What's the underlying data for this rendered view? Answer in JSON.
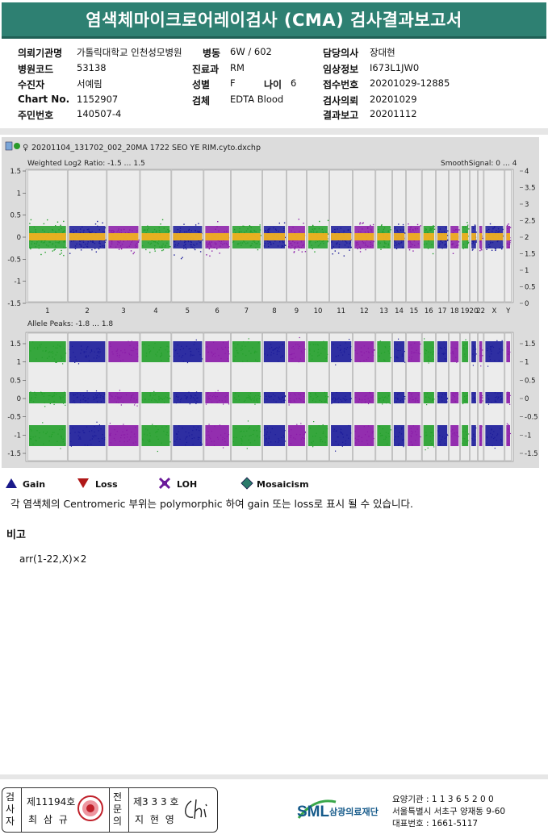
{
  "title": "염색체마이크로어레이검사 (CMA) 검사결과보고서",
  "info": [
    {
      "key": "의뢰기관명",
      "value": "가톨릭대학교 인천성모병원"
    },
    {
      "key": "병동",
      "value": "6W / 602"
    },
    {
      "key": "담당의사",
      "value": "장대현"
    },
    {
      "key": "병원코드",
      "value": "53138"
    },
    {
      "key": "진료과",
      "value": "RM"
    },
    {
      "key": "임상정보",
      "value": "I673L1JW0"
    },
    {
      "key": "수진자",
      "value": "서예림"
    },
    {
      "key": "성별",
      "value": "F"
    },
    {
      "key": "나이",
      "value": "6"
    },
    {
      "key": "접수번호",
      "value": "20201029-12885"
    },
    {
      "key": "Chart No.",
      "value": "1152907"
    },
    {
      "key": "검체",
      "value": "EDTA Blood"
    },
    {
      "key": "검사의뢰",
      "value": "20201029"
    },
    {
      "key": "주민번호",
      "value": "140507-4"
    },
    {
      "key": "결과보고",
      "value": "20201112"
    }
  ],
  "plot": {
    "filename": "20201104_131702_002_20MA 1722 SEO YE RIM.cyto.dxchp",
    "top_label_left": "Weighted Log2 Ratio: -1.5 … 1.5",
    "top_label_right": "SmoothSignal: 0 … 4",
    "bottom_label_left": "Allele Peaks: -1.8 … 1.8",
    "top_left_ticks": [
      "1.5",
      "1",
      "0.5",
      "0",
      "-0.5",
      "-1",
      "-1.5"
    ],
    "top_right_ticks": [
      "4",
      "3.5",
      "3",
      "2.5",
      "2",
      "1.5",
      "1",
      "0.5",
      "0"
    ],
    "bottom_left_ticks": [
      "1.5",
      "1",
      "0.5",
      "0",
      "-0.5",
      "-1",
      "-1.5"
    ],
    "bottom_right_ticks": [
      "1.5",
      "1",
      "0.5",
      "0",
      "-0.5",
      "-1",
      "-1.5"
    ],
    "chromosomes": [
      "1",
      "2",
      "3",
      "4",
      "5",
      "6",
      "7",
      "8",
      "9",
      "10",
      "11",
      "12",
      "13",
      "14",
      "15",
      "16",
      "17",
      "18",
      "19",
      "20",
      "22",
      "X",
      "Y"
    ],
    "colors": {
      "green": "#22a02a",
      "blue": "#1a1a9a",
      "purple": "#8a1aa8",
      "orange": "#f0b020"
    }
  },
  "legend": {
    "gain": "Gain",
    "loss": "Loss",
    "loh": "LOH",
    "mosaicism": "Mosaicism"
  },
  "note": "각 염색체의 Centromeric 부위는 polymorphic 하여 gain 또는 loss로 표시 될 수 있습니다.",
  "remarks_title": "비고",
  "result": "arr(1-22,X)×2",
  "footer": {
    "checker_label": "검사자",
    "checker_no": "제11194호",
    "checker_name": "최 삼 규",
    "specialist_label": "전문의",
    "specialist_no": "제3 3 3 호",
    "specialist_name": "지 현 영",
    "org_logo": "SML",
    "org_name": "삼광의료재단",
    "org_code": "요양기관 : 1 1 3 6 5 2 0 0",
    "org_address": "서울특별시 서초구 양재동 9-60",
    "org_phone": "대표번호 : 1661-5117"
  }
}
